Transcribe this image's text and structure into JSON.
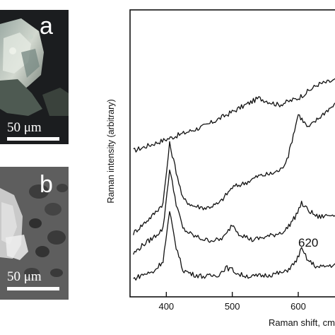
{
  "panel_a": {
    "letter": "a",
    "scale_label": "50 μm"
  },
  "panel_b": {
    "letter": "b",
    "scale_label": "50 μm"
  },
  "chart_data": {
    "type": "line",
    "xlabel": "Raman shift, cm",
    "ylabel": "Raman  intensity (arbitrary)",
    "xlim": [
      345,
      660
    ],
    "ylim": [
      0,
      100
    ],
    "x_ticks": [
      400,
      500,
      600
    ],
    "y_ticks": false,
    "grid": false,
    "annotations": [
      {
        "text": "620",
        "x": 608,
        "y": 23
      }
    ],
    "series": [
      {
        "x": [
          350,
          380,
          420,
          460,
          500,
          540,
          570,
          600,
          630,
          660
        ],
        "y": [
          57,
          60,
          64,
          68,
          74,
          80,
          77,
          80,
          86,
          88
        ]
      },
      {
        "x": [
          350,
          365,
          380,
          395,
          405,
          415,
          425,
          440,
          460,
          480,
          500,
          520,
          540,
          560,
          575,
          585,
          600,
          615,
          630,
          645,
          660
        ],
        "y": [
          21,
          25,
          29,
          34,
          60,
          48,
          36,
          33,
          32,
          34,
          41,
          43,
          46,
          47,
          49,
          55,
          73,
          67,
          71,
          75,
          78
        ]
      },
      {
        "x": [
          350,
          365,
          380,
          395,
          405,
          415,
          425,
          440,
          460,
          480,
          490,
          500,
          510,
          530,
          560,
          580,
          595,
          605,
          615,
          630,
          650,
          660
        ],
        "y": [
          12,
          16,
          19,
          23,
          49,
          34,
          23,
          20,
          18,
          18,
          20,
          25,
          21,
          18,
          20,
          22,
          28,
          34,
          31,
          28,
          29,
          30
        ]
      },
      {
        "x": [
          350,
          365,
          380,
          395,
          405,
          415,
          425,
          440,
          460,
          480,
          490,
          500,
          510,
          530,
          560,
          580,
          595,
          605,
          615,
          630,
          650,
          660
        ],
        "y": [
          1,
          3,
          4,
          9,
          30,
          15,
          5,
          3,
          2,
          3,
          6,
          5,
          3,
          2,
          3,
          4,
          8,
          14,
          9,
          6,
          7,
          7
        ]
      }
    ]
  }
}
